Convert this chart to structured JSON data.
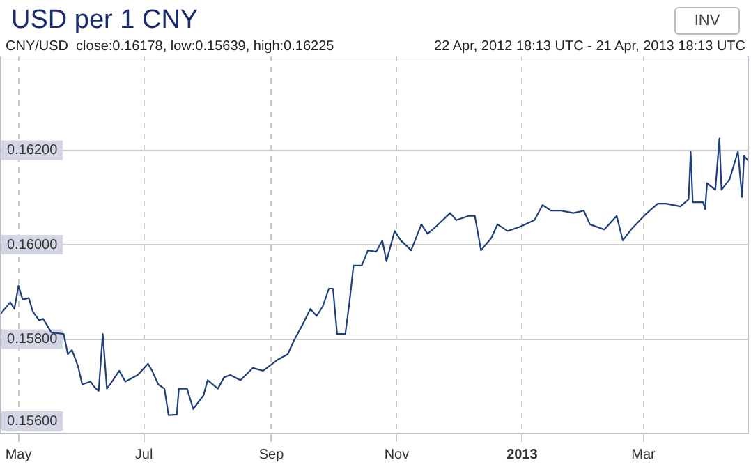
{
  "chart_data": {
    "type": "line",
    "title": "USD per 1 CNY",
    "subtitle": "CNY/USD  close:0.16178, low:0.15639, high:0.16225",
    "annotations": [
      "22 Apr, 2012 18:13 UTC - 21 Apr, 2013 18:13 UTC",
      "INV"
    ],
    "x": [
      "2012-04-22",
      "2012-04-27",
      "2012-04-29",
      "2012-05-01",
      "2012-05-03",
      "2012-05-06",
      "2012-05-08",
      "2012-05-11",
      "2012-05-13",
      "2012-05-17",
      "2012-05-23",
      "2012-05-25",
      "2012-05-27",
      "2012-05-30",
      "2012-06-01",
      "2012-06-05",
      "2012-06-07",
      "2012-06-09",
      "2012-06-11",
      "2012-06-13",
      "2012-06-16",
      "2012-06-19",
      "2012-06-22",
      "2012-06-28",
      "2012-07-03",
      "2012-07-05",
      "2012-07-08",
      "2012-07-11",
      "2012-07-13",
      "2012-07-17",
      "2012-07-18",
      "2012-07-22",
      "2012-07-25",
      "2012-07-30",
      "2012-08-01",
      "2012-08-06",
      "2012-08-09",
      "2012-08-12",
      "2012-08-17",
      "2012-08-23",
      "2012-08-28",
      "2012-09-04",
      "2012-09-09",
      "2012-09-12",
      "2012-09-16",
      "2012-09-20",
      "2012-09-23",
      "2012-09-26",
      "2012-09-29",
      "2012-10-01",
      "2012-10-03",
      "2012-10-07",
      "2012-10-09",
      "2012-10-11",
      "2012-10-15",
      "2012-10-18",
      "2012-10-22",
      "2012-10-25",
      "2012-10-27",
      "2012-10-31",
      "2012-11-03",
      "2012-11-08",
      "2012-11-13",
      "2012-11-16",
      "2012-11-20",
      "2012-11-27",
      "2012-11-30",
      "2012-12-06",
      "2012-12-09",
      "2012-12-12",
      "2012-12-17",
      "2012-12-20",
      "2012-12-25",
      "2012-12-31",
      "2013-01-07",
      "2013-01-11",
      "2013-01-15",
      "2013-01-20",
      "2013-01-26",
      "2013-01-31",
      "2013-02-03",
      "2013-02-10",
      "2013-02-16",
      "2013-02-19",
      "2013-02-23",
      "2013-03-02",
      "2013-03-08",
      "2013-03-12",
      "2013-03-19",
      "2013-03-23",
      "2013-03-24",
      "2013-03-25",
      "2013-03-30",
      "2013-03-31",
      "2013-04-01",
      "2013-04-05",
      "2013-04-07",
      "2013-04-08",
      "2013-04-12",
      "2013-04-16",
      "2013-04-18",
      "2013-04-19",
      "2013-04-21"
    ],
    "series": [
      {
        "color": "#1f3f7a",
        "values": [
          0.15852,
          0.15878,
          0.15864,
          0.15913,
          0.15884,
          0.15887,
          0.15858,
          0.1584,
          0.15843,
          0.15814,
          0.15811,
          0.15768,
          0.15777,
          0.15742,
          0.15704,
          0.1571,
          0.15698,
          0.1569,
          0.15811,
          0.15695,
          0.15713,
          0.15733,
          0.1571,
          0.15724,
          0.15748,
          0.15733,
          0.15704,
          0.15695,
          0.15639,
          0.1564,
          0.15695,
          0.15695,
          0.15652,
          0.15681,
          0.15713,
          0.15695,
          0.15719,
          0.15724,
          0.15713,
          0.15739,
          0.15733,
          0.15756,
          0.15768,
          0.15797,
          0.15829,
          0.15864,
          0.15849,
          0.15869,
          0.15907,
          0.15907,
          0.15811,
          0.15811,
          0.15878,
          0.15956,
          0.15956,
          0.15988,
          0.15985,
          0.16009,
          0.15965,
          0.16029,
          0.16009,
          0.15988,
          0.16043,
          0.16023,
          0.16038,
          0.16067,
          0.16052,
          0.16061,
          0.16061,
          0.15988,
          0.16014,
          0.16043,
          0.16029,
          0.16038,
          0.16052,
          0.16084,
          0.16072,
          0.16072,
          0.16067,
          0.16072,
          0.16043,
          0.16032,
          0.16061,
          0.16009,
          0.16032,
          0.16064,
          0.16087,
          0.16087,
          0.16081,
          0.16096,
          0.16197,
          0.1609,
          0.1609,
          0.16075,
          0.1613,
          0.16116,
          0.16225,
          0.16116,
          0.16139,
          0.16197,
          0.16101,
          0.16188,
          0.16178
        ]
      }
    ],
    "xlim": [
      "2012-04-22",
      "2013-04-21"
    ],
    "xticks": [
      {
        "value": "2012-05-01",
        "label": "May"
      },
      {
        "value": "2012-07-01",
        "label": "Jul"
      },
      {
        "value": "2012-09-01",
        "label": "Sep"
      },
      {
        "value": "2012-11-01",
        "label": "Nov"
      },
      {
        "value": "2013-01-01",
        "label": "2013"
      },
      {
        "value": "2013-03-01",
        "label": "Mar"
      }
    ],
    "ylim": [
      0.156,
      0.164
    ],
    "yticks": [
      {
        "value": 0.156,
        "label": "0.15600"
      },
      {
        "value": 0.158,
        "label": "0.15800"
      },
      {
        "value": 0.16,
        "label": "0.16000"
      },
      {
        "value": 0.162,
        "label": "0.16200"
      }
    ],
    "grid": true,
    "legend": false,
    "marker": "none",
    "line_style": "solid"
  }
}
